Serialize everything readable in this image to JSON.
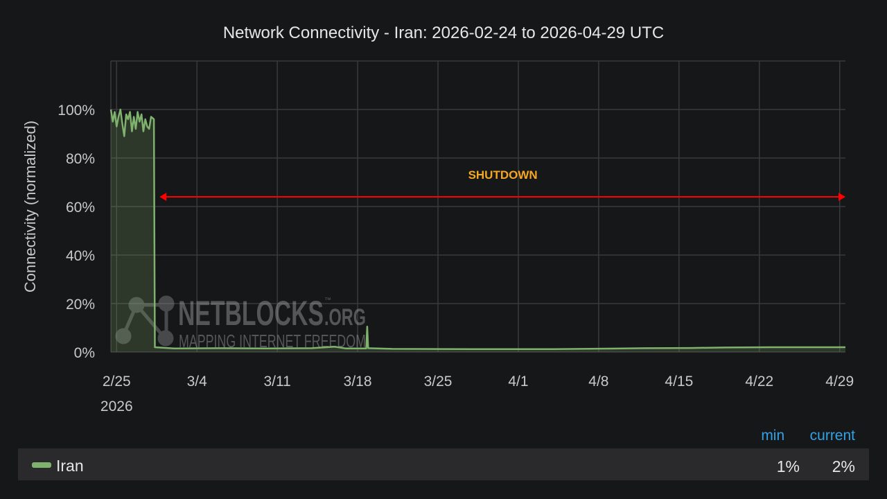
{
  "chart_data": {
    "type": "area",
    "title": "Network Connectivity - Iran: 2026-02-24 to 2026-04-29 UTC",
    "ylabel": "Connectivity (normalized)",
    "xlabel": "",
    "ylim": [
      0,
      120
    ],
    "xlim": [
      "2026-02-24T12:00",
      "2026-04-29T12:00"
    ],
    "yticks": [
      "0%",
      "20%",
      "40%",
      "60%",
      "80%",
      "100%"
    ],
    "yticks_values": [
      0,
      20,
      40,
      60,
      80,
      100
    ],
    "xticks": [
      "2/25",
      "3/4",
      "3/11",
      "3/18",
      "3/25",
      "4/1",
      "4/8",
      "4/15",
      "4/22",
      "4/29"
    ],
    "xticks_dates": [
      "2026-02-25",
      "2026-03-04",
      "2026-03-11",
      "2026-03-18",
      "2026-03-25",
      "2026-04-01",
      "2026-04-08",
      "2026-04-15",
      "2026-04-22",
      "2026-04-29"
    ],
    "xtick_year": "2026",
    "grid": true,
    "series": [
      {
        "name": "Iran",
        "color": "#7eb26d",
        "points": [
          [
            "2026-02-24T12:00",
            100
          ],
          [
            "2026-02-24T16:00",
            95
          ],
          [
            "2026-02-24T20:00",
            99
          ],
          [
            "2026-02-25T00:00",
            93
          ],
          [
            "2026-02-25T04:00",
            97
          ],
          [
            "2026-02-25T08:00",
            100
          ],
          [
            "2026-02-25T12:00",
            94
          ],
          [
            "2026-02-25T16:00",
            89
          ],
          [
            "2026-02-25T20:00",
            98
          ],
          [
            "2026-02-26T00:00",
            96
          ],
          [
            "2026-02-26T04:00",
            99
          ],
          [
            "2026-02-26T08:00",
            91
          ],
          [
            "2026-02-26T12:00",
            97
          ],
          [
            "2026-02-26T16:00",
            92
          ],
          [
            "2026-02-26T20:00",
            99
          ],
          [
            "2026-02-27T00:00",
            95
          ],
          [
            "2026-02-27T04:00",
            98
          ],
          [
            "2026-02-27T08:00",
            91
          ],
          [
            "2026-02-27T12:00",
            96
          ],
          [
            "2026-02-27T16:00",
            93
          ],
          [
            "2026-02-27T20:00",
            92
          ],
          [
            "2026-02-28T00:00",
            97
          ],
          [
            "2026-02-28T06:00",
            96
          ],
          [
            "2026-02-28T08:00",
            2
          ],
          [
            "2026-03-02T00:00",
            1.5
          ],
          [
            "2026-03-06T00:00",
            1.6
          ],
          [
            "2026-03-10T00:00",
            1.5
          ],
          [
            "2026-03-14T00:00",
            1.6
          ],
          [
            "2026-03-16T00:00",
            2.2
          ],
          [
            "2026-03-17T00:00",
            1.5
          ],
          [
            "2026-03-18T18:00",
            1.5
          ],
          [
            "2026-03-18T20:00",
            10.5
          ],
          [
            "2026-03-18T22:00",
            1.6
          ],
          [
            "2026-03-21T00:00",
            1.3
          ],
          [
            "2026-03-28T00:00",
            1.2
          ],
          [
            "2026-04-04T00:00",
            1.2
          ],
          [
            "2026-04-08T00:00",
            1.4
          ],
          [
            "2026-04-12T00:00",
            1.6
          ],
          [
            "2026-04-16T00:00",
            1.7
          ],
          [
            "2026-04-19T00:00",
            1.9
          ],
          [
            "2026-04-23T00:00",
            2
          ],
          [
            "2026-04-29T12:00",
            2
          ]
        ]
      }
    ],
    "annotations": [
      {
        "text": "SHUTDOWN",
        "from": "2026-02-28T12:00",
        "to": "2026-04-29T12:00",
        "y": 64,
        "color": "#ff0000",
        "text_color": "#f5a623"
      }
    ],
    "legend": {
      "placement": "bottom",
      "headers": [
        "min",
        "current"
      ],
      "rows": [
        {
          "name": "Iran",
          "min": "1%",
          "current": "2%"
        }
      ]
    }
  },
  "watermark": {
    "brand": "NETBLOCKS",
    "tld": ".ORG",
    "tm": "™",
    "tagline": "MAPPING INTERNET FREEDOM"
  }
}
